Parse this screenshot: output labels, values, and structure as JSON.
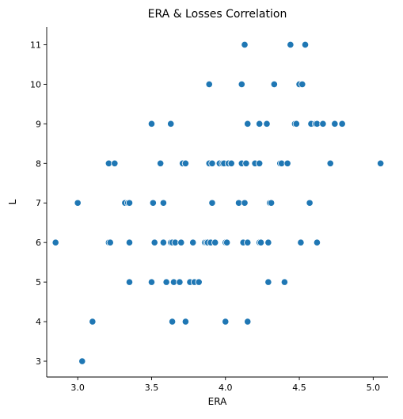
{
  "chart_data": {
    "type": "scatter",
    "title": "ERA & Losses Correlation",
    "xlabel": "ERA",
    "ylabel": "L",
    "xlim": [
      2.79,
      5.1
    ],
    "ylim": [
      2.6,
      11.45
    ],
    "xticks": [
      3.0,
      3.5,
      4.0,
      4.5,
      5.0
    ],
    "xtick_labels": [
      "3.0",
      "3.5",
      "4.0",
      "4.5",
      "5.0"
    ],
    "yticks": [
      3,
      4,
      5,
      6,
      7,
      8,
      9,
      10,
      11
    ],
    "ytick_labels": [
      "3",
      "4",
      "5",
      "6",
      "7",
      "8",
      "9",
      "10",
      "11"
    ],
    "grid": false,
    "marker_color": "#1f77b4",
    "points": [
      [
        2.85,
        6
      ],
      [
        3.0,
        7
      ],
      [
        3.03,
        3
      ],
      [
        3.1,
        4
      ],
      [
        3.21,
        8
      ],
      [
        3.25,
        8
      ],
      [
        3.21,
        6
      ],
      [
        3.22,
        6
      ],
      [
        3.32,
        7
      ],
      [
        3.34,
        7
      ],
      [
        3.35,
        7
      ],
      [
        3.35,
        6
      ],
      [
        3.35,
        5
      ],
      [
        3.5,
        9
      ],
      [
        3.51,
        7
      ],
      [
        3.52,
        6
      ],
      [
        3.5,
        5
      ],
      [
        3.56,
        8
      ],
      [
        3.58,
        7
      ],
      [
        3.58,
        6
      ],
      [
        3.6,
        5
      ],
      [
        3.63,
        6
      ],
      [
        3.64,
        6
      ],
      [
        3.63,
        9
      ],
      [
        3.64,
        4
      ],
      [
        3.65,
        5
      ],
      [
        3.66,
        6
      ],
      [
        3.69,
        5
      ],
      [
        3.71,
        8
      ],
      [
        3.73,
        8
      ],
      [
        3.7,
        6
      ],
      [
        3.73,
        4
      ],
      [
        3.76,
        5
      ],
      [
        3.79,
        5
      ],
      [
        3.82,
        5
      ],
      [
        3.78,
        6
      ],
      [
        3.86,
        6
      ],
      [
        3.87,
        6
      ],
      [
        3.88,
        6
      ],
      [
        3.89,
        8
      ],
      [
        3.89,
        10
      ],
      [
        3.91,
        8
      ],
      [
        3.9,
        6
      ],
      [
        3.91,
        7
      ],
      [
        3.93,
        6
      ],
      [
        3.96,
        8
      ],
      [
        3.98,
        8
      ],
      [
        3.99,
        8
      ],
      [
        4.0,
        6
      ],
      [
        4.01,
        6
      ],
      [
        4.0,
        4
      ],
      [
        4.02,
        8
      ],
      [
        4.04,
        8
      ],
      [
        4.09,
        7
      ],
      [
        4.11,
        8
      ],
      [
        4.11,
        10
      ],
      [
        4.12,
        6
      ],
      [
        4.13,
        11
      ],
      [
        4.13,
        7
      ],
      [
        4.15,
        9
      ],
      [
        4.14,
        8
      ],
      [
        4.15,
        6
      ],
      [
        4.15,
        4
      ],
      [
        4.2,
        8
      ],
      [
        4.23,
        8
      ],
      [
        4.23,
        9
      ],
      [
        4.23,
        6
      ],
      [
        4.24,
        6
      ],
      [
        4.28,
        9
      ],
      [
        4.29,
        5
      ],
      [
        4.29,
        6
      ],
      [
        4.3,
        7
      ],
      [
        4.31,
        7
      ],
      [
        4.33,
        10
      ],
      [
        4.37,
        8
      ],
      [
        4.38,
        8
      ],
      [
        4.4,
        5
      ],
      [
        4.42,
        8
      ],
      [
        4.44,
        11
      ],
      [
        4.47,
        9
      ],
      [
        4.48,
        9
      ],
      [
        4.5,
        10
      ],
      [
        4.51,
        6
      ],
      [
        4.52,
        10
      ],
      [
        4.54,
        11
      ],
      [
        4.57,
        7
      ],
      [
        4.58,
        9
      ],
      [
        4.61,
        9
      ],
      [
        4.62,
        6
      ],
      [
        4.62,
        9
      ],
      [
        4.66,
        9
      ],
      [
        4.71,
        8
      ],
      [
        4.74,
        9
      ],
      [
        4.79,
        9
      ],
      [
        5.05,
        8
      ]
    ]
  }
}
